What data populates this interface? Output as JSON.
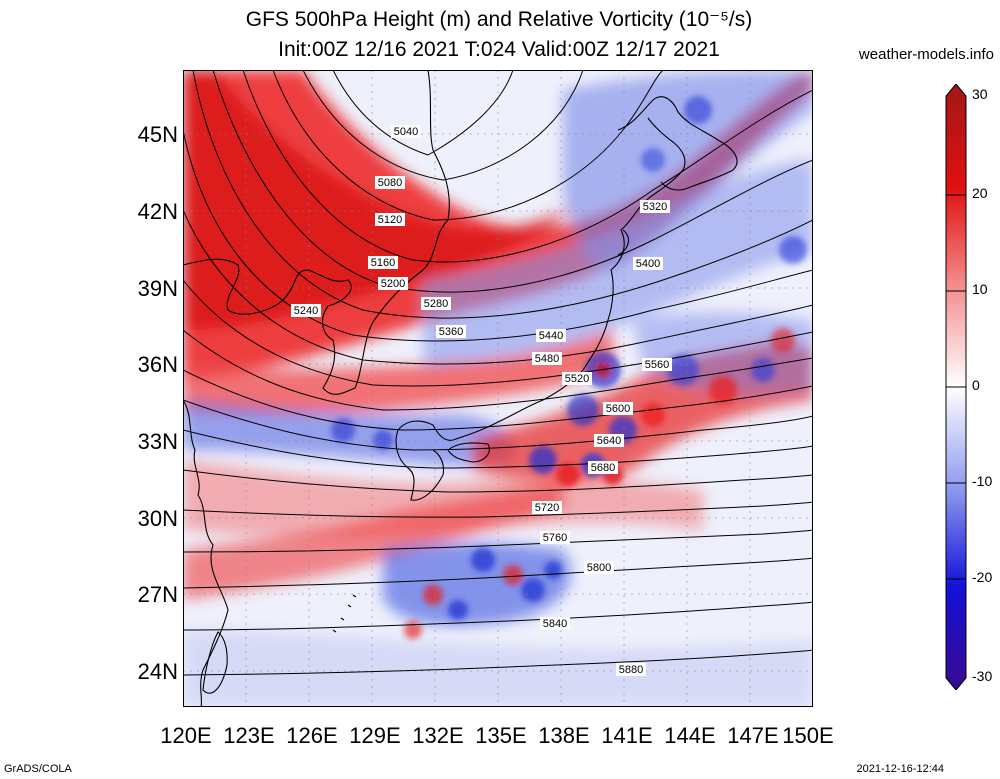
{
  "header": {
    "title_line1": "GFS 500hPa Height (m) and Relative Vorticity (10⁻⁵/s)",
    "title_line2": "Init:00Z 12/16 2021 T:024 Valid:00Z 12/17 2021",
    "site": "weather-models.info"
  },
  "footer": {
    "left": "GrADS/COLA",
    "right": "2021-12-16-12:44"
  },
  "map": {
    "lat_labels": [
      "45N",
      "42N",
      "39N",
      "36N",
      "33N",
      "30N",
      "27N",
      "24N"
    ],
    "lon_labels": [
      "120E",
      "123E",
      "126E",
      "129E",
      "132E",
      "135E",
      "138E",
      "141E",
      "144E",
      "147E",
      "150E"
    ],
    "contour_labels": [
      "5040",
      "5080",
      "5120",
      "5160",
      "5200",
      "5240",
      "5280",
      "5320",
      "5360",
      "5400",
      "5440",
      "5480",
      "5520",
      "5560",
      "5600",
      "5640",
      "5680",
      "5720",
      "5760",
      "5800",
      "5840",
      "5880"
    ]
  },
  "colorbar": {
    "labels": [
      "30",
      "20",
      "10",
      "0",
      "-10",
      "-20",
      "-30"
    ],
    "colors": {
      "max": "#a01818",
      "pos": "#f01010",
      "zero": "#ffffff",
      "neg": "#1010f0",
      "min": "#3a0a90"
    }
  }
}
